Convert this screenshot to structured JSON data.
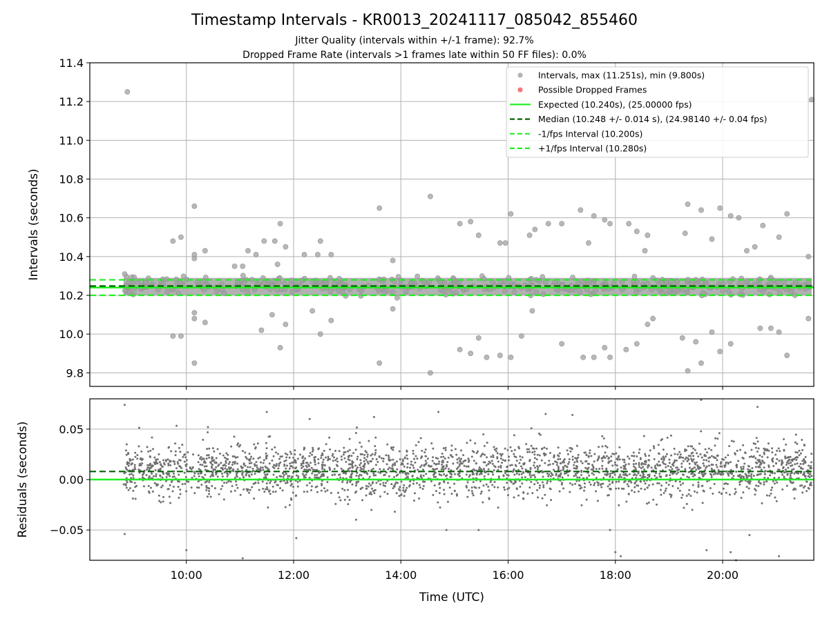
{
  "chart_data": [
    {
      "type": "scatter",
      "title": "Timestamp Intervals - KR0013_20241117_085042_855460",
      "subtitle_lines": [
        "Jitter Quality (intervals within +/-1 frame): 92.7%",
        "Dropped Frame Rate (intervals >1 frames late within 50 FF files): 0.0%"
      ],
      "xlabel": "",
      "ylabel": "Intervals (seconds)",
      "xlim_hours": [
        8.2,
        21.7
      ],
      "ylim": [
        9.73,
        11.4
      ],
      "yticks": [
        9.8,
        10.0,
        10.2,
        10.4,
        10.6,
        10.8,
        11.0,
        11.2,
        11.4
      ],
      "ytick_labels": [
        "9.8",
        "10.0",
        "10.2",
        "10.4",
        "10.6",
        "10.8",
        "11.0",
        "11.2",
        "11.4"
      ],
      "grid": true,
      "legend_position": "top-right",
      "legend": [
        {
          "label": "Intervals, max (11.251s), min (9.800s)",
          "kind": "marker",
          "color": "#a6a6a6"
        },
        {
          "label": "Possible Dropped Frames",
          "kind": "marker",
          "color": "#f06060"
        },
        {
          "label": "Expected (10.240s), (25.00000 fps)",
          "kind": "line",
          "color": "#22ee22",
          "dash": "solid"
        },
        {
          "label": "Median (10.248 +/- 0.014 s), (24.98140 +/- 0.04 fps)",
          "kind": "line",
          "color": "#006400",
          "dash": "dashed"
        },
        {
          "label": "-1/fps Interval (10.200s)",
          "kind": "line",
          "color": "#22ee22",
          "dash": "dashed"
        },
        {
          "label": "+1/fps Interval (10.280s)",
          "kind": "line",
          "color": "#22ee22",
          "dash": "dashed"
        }
      ],
      "reference_lines": {
        "expected": 10.24,
        "median": 10.248,
        "minus_one_frame": 10.2,
        "plus_one_frame": 10.28
      },
      "series": [
        {
          "name": "Intervals, max (11.251s), min (9.800s)",
          "x_range_hours": [
            8.83,
            21.66
          ],
          "dense_band": [
            10.2,
            10.29
          ],
          "outliers": [
            [
              8.9,
              11.25
            ],
            [
              8.85,
              10.31
            ],
            [
              9.75,
              10.48
            ],
            [
              9.9,
              10.5
            ],
            [
              10.15,
              10.66
            ],
            [
              10.15,
              10.39
            ],
            [
              10.15,
              10.41
            ],
            [
              10.35,
              10.43
            ],
            [
              9.75,
              9.99
            ],
            [
              9.9,
              9.99
            ],
            [
              10.15,
              10.11
            ],
            [
              10.15,
              10.08
            ],
            [
              10.15,
              9.85
            ],
            [
              10.35,
              10.06
            ],
            [
              10.9,
              10.35
            ],
            [
              11.05,
              10.35
            ],
            [
              11.15,
              10.43
            ],
            [
              11.3,
              10.41
            ],
            [
              11.45,
              10.48
            ],
            [
              11.65,
              10.48
            ],
            [
              11.75,
              10.57
            ],
            [
              11.7,
              10.36
            ],
            [
              11.85,
              10.45
            ],
            [
              11.4,
              10.02
            ],
            [
              11.6,
              10.1
            ],
            [
              11.75,
              9.93
            ],
            [
              11.85,
              10.05
            ],
            [
              12.2,
              10.41
            ],
            [
              12.45,
              10.41
            ],
            [
              12.5,
              10.48
            ],
            [
              12.7,
              10.41
            ],
            [
              12.35,
              10.12
            ],
            [
              12.5,
              10.0
            ],
            [
              12.7,
              10.07
            ],
            [
              13.6,
              10.65
            ],
            [
              13.6,
              9.85
            ],
            [
              13.85,
              10.38
            ],
            [
              13.85,
              10.13
            ],
            [
              14.55,
              10.71
            ],
            [
              14.55,
              9.8
            ],
            [
              15.1,
              10.57
            ],
            [
              15.3,
              10.58
            ],
            [
              15.45,
              10.51
            ],
            [
              15.1,
              9.92
            ],
            [
              15.3,
              9.9
            ],
            [
              15.45,
              9.98
            ],
            [
              15.6,
              9.88
            ],
            [
              15.85,
              10.47
            ],
            [
              15.95,
              10.47
            ],
            [
              16.05,
              10.62
            ],
            [
              16.4,
              10.51
            ],
            [
              16.5,
              10.54
            ],
            [
              15.85,
              9.89
            ],
            [
              16.05,
              9.88
            ],
            [
              16.25,
              9.99
            ],
            [
              16.45,
              10.12
            ],
            [
              16.75,
              10.57
            ],
            [
              17.0,
              10.57
            ],
            [
              17.35,
              10.64
            ],
            [
              17.5,
              10.47
            ],
            [
              17.6,
              10.61
            ],
            [
              17.8,
              10.59
            ],
            [
              17.9,
              10.57
            ],
            [
              17.0,
              9.95
            ],
            [
              17.4,
              9.88
            ],
            [
              17.6,
              9.88
            ],
            [
              17.8,
              9.93
            ],
            [
              17.9,
              9.88
            ],
            [
              18.25,
              10.57
            ],
            [
              18.4,
              10.53
            ],
            [
              18.6,
              10.51
            ],
            [
              18.55,
              10.43
            ],
            [
              18.2,
              9.92
            ],
            [
              18.4,
              9.95
            ],
            [
              18.6,
              10.05
            ],
            [
              18.7,
              10.08
            ],
            [
              19.3,
              10.52
            ],
            [
              19.35,
              10.67
            ],
            [
              19.6,
              10.64
            ],
            [
              19.8,
              10.49
            ],
            [
              19.95,
              10.65
            ],
            [
              20.15,
              10.61
            ],
            [
              20.3,
              10.6
            ],
            [
              19.25,
              9.98
            ],
            [
              19.35,
              9.81
            ],
            [
              19.5,
              9.96
            ],
            [
              19.6,
              9.85
            ],
            [
              19.8,
              10.01
            ],
            [
              19.95,
              9.91
            ],
            [
              20.15,
              9.95
            ],
            [
              20.45,
              10.43
            ],
            [
              20.6,
              10.45
            ],
            [
              20.75,
              10.56
            ],
            [
              21.05,
              10.5
            ],
            [
              21.2,
              10.62
            ],
            [
              21.6,
              10.4
            ],
            [
              21.66,
              11.21
            ],
            [
              20.7,
              10.03
            ],
            [
              20.9,
              10.03
            ],
            [
              21.05,
              10.01
            ],
            [
              21.2,
              9.89
            ],
            [
              21.6,
              10.08
            ]
          ]
        },
        {
          "name": "Possible Dropped Frames",
          "points": []
        }
      ]
    },
    {
      "type": "scatter",
      "title": "",
      "xlabel": "Time (UTC)",
      "ylabel": "Residuals (seconds)",
      "xlim_hours": [
        8.2,
        21.7
      ],
      "ylim": [
        -0.08,
        0.08
      ],
      "yticks": [
        -0.05,
        0.0,
        0.05
      ],
      "ytick_labels": [
        "−0.05",
        "0.00",
        "0.05"
      ],
      "xticks_hours": [
        10,
        12,
        14,
        16,
        18,
        20
      ],
      "xtick_labels": [
        "10:00",
        "12:00",
        "14:00",
        "16:00",
        "18:00",
        "20:00"
      ],
      "grid": true,
      "reference_lines": {
        "zero": 0.0,
        "median_offset": 0.008
      },
      "series": [
        {
          "name": "Residuals",
          "x_range_hours": [
            8.83,
            21.66
          ],
          "dense_band": [
            -0.03,
            0.04
          ],
          "outliers": [
            [
              8.85,
              0.074
            ],
            [
              8.85,
              -0.054
            ],
            [
              10.0,
              -0.07
            ],
            [
              11.05,
              -0.078
            ],
            [
              11.5,
              0.067
            ],
            [
              12.05,
              -0.058
            ],
            [
              12.3,
              0.06
            ],
            [
              13.5,
              0.062
            ],
            [
              14.7,
              0.067
            ],
            [
              14.85,
              -0.05
            ],
            [
              15.45,
              -0.05
            ],
            [
              16.7,
              0.065
            ],
            [
              17.2,
              0.064
            ],
            [
              17.9,
              -0.05
            ],
            [
              18.0,
              -0.072
            ],
            [
              18.1,
              -0.076
            ],
            [
              19.6,
              0.079
            ],
            [
              19.7,
              -0.07
            ],
            [
              20.15,
              -0.072
            ],
            [
              20.25,
              -0.08
            ],
            [
              20.5,
              -0.055
            ],
            [
              20.65,
              0.072
            ],
            [
              21.05,
              -0.076
            ]
          ]
        }
      ]
    }
  ]
}
